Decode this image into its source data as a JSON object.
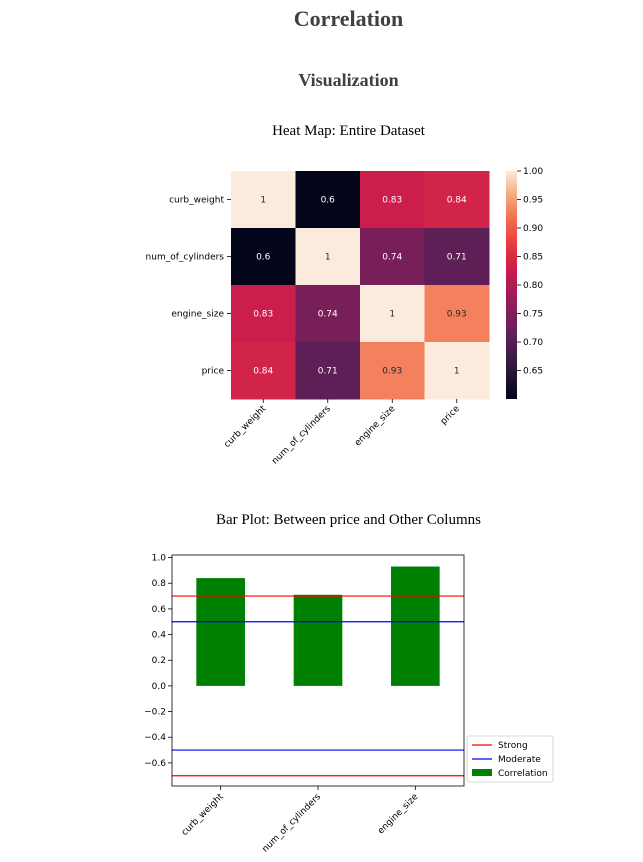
{
  "page": {
    "title": "Correlation",
    "section": "Visualization"
  },
  "chart_data": [
    {
      "type": "heatmap",
      "title": "Heat Map: Entire Dataset",
      "rows": [
        "curb_weight",
        "num_of_cylinders",
        "engine_size",
        "price"
      ],
      "columns": [
        "curb_weight",
        "num_of_cylinders",
        "engine_size",
        "price"
      ],
      "values": [
        [
          1,
          0.6,
          0.83,
          0.84
        ],
        [
          0.6,
          1,
          0.74,
          0.71
        ],
        [
          0.83,
          0.74,
          1,
          0.93
        ],
        [
          0.84,
          0.71,
          0.93,
          1
        ]
      ],
      "labels": [
        [
          "1",
          "0.6",
          "0.83",
          "0.84"
        ],
        [
          "0.6",
          "1",
          "0.74",
          "0.71"
        ],
        [
          "0.83",
          "0.74",
          "1",
          "0.93"
        ],
        [
          "0.84",
          "0.71",
          "0.93",
          "1"
        ]
      ],
      "colorbar": {
        "range": [
          0.6,
          1.0
        ],
        "ticks": [
          0.65,
          0.7,
          0.75,
          0.8,
          0.85,
          0.9,
          0.95,
          1.0
        ],
        "tick_labels": [
          "0.65",
          "0.70",
          "0.75",
          "0.80",
          "0.85",
          "0.90",
          "0.95",
          "1.00"
        ],
        "colormap": "rocket"
      }
    },
    {
      "type": "bar",
      "title": "Bar Plot: Between price and Other Columns",
      "categories": [
        "curb_weight",
        "num_of_cylinders",
        "engine_size"
      ],
      "values": [
        0.84,
        0.71,
        0.93
      ],
      "bar_color": "#008000",
      "ylim": [
        -0.78,
        1.02
      ],
      "yticks": [
        -0.6,
        -0.4,
        -0.2,
        0.0,
        0.2,
        0.4,
        0.6,
        0.8,
        1.0
      ],
      "ytick_labels": [
        "−0.6",
        "−0.4",
        "−0.2",
        "0.0",
        "0.2",
        "0.4",
        "0.6",
        "0.8",
        "1.0"
      ],
      "reference_lines": [
        {
          "name": "Strong",
          "values": [
            0.7,
            -0.7
          ],
          "color": "#ff0000"
        },
        {
          "name": "Moderate",
          "values": [
            0.5,
            -0.5
          ],
          "color": "#0000ff"
        }
      ],
      "legend": {
        "placement": "outside-right-bottom",
        "entries": [
          {
            "label": "Strong",
            "kind": "line",
            "color": "#ff0000"
          },
          {
            "label": "Moderate",
            "kind": "line",
            "color": "#0000ff"
          },
          {
            "label": "Correlation",
            "kind": "patch",
            "color": "#008000"
          }
        ]
      }
    }
  ]
}
